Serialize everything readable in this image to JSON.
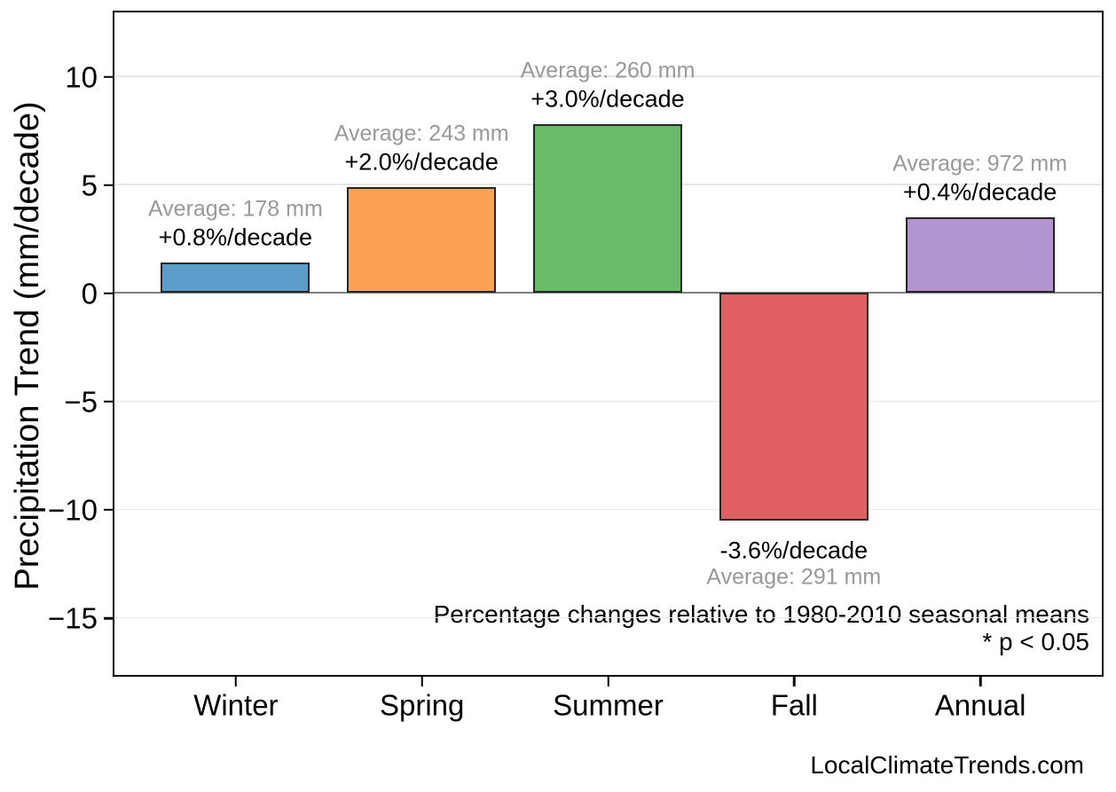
{
  "figure": {
    "footer": "LocalClimateTrends.com"
  },
  "chart_data": {
    "type": "bar",
    "title": "",
    "xlabel": "",
    "ylabel": "Precipitation Trend (mm/decade)",
    "categories": [
      "Winter",
      "Spring",
      "Summer",
      "Fall",
      "Annual"
    ],
    "series": [
      {
        "name": "Precipitation trend (mm/decade)",
        "values": [
          1.4,
          4.9,
          7.8,
          -10.5,
          3.5
        ]
      }
    ],
    "bar_labels": [
      {
        "percent": "+0.8%/decade",
        "average": "Average: 178 mm"
      },
      {
        "percent": "+2.0%/decade",
        "average": "Average: 243 mm"
      },
      {
        "percent": "+3.0%/decade",
        "average": "Average: 260 mm"
      },
      {
        "percent": "-3.6%/decade",
        "average": "Average: 291 mm"
      },
      {
        "percent": "+0.4%/decade",
        "average": "Average: 972 mm"
      }
    ],
    "bar_colors": [
      "#5C9CC9",
      "#FCA254",
      "#69BB69",
      "#E05F60",
      "#B194D0"
    ],
    "bar_edge_color": "#262626",
    "percent_label_color": "#000000",
    "average_label_color": "#999999",
    "yticks": [
      10,
      5,
      0,
      -5,
      -10,
      -15
    ],
    "ytick_labels": [
      "10",
      "5",
      "0",
      "−5",
      "−10",
      "−15"
    ],
    "ylim": [
      -17.6,
      12.95
    ],
    "xlim": [
      -0.65,
      4.65
    ],
    "bar_width": 0.8,
    "grid": "horizontal-only",
    "gridline_color": "#e7e7e7",
    "zero_line_color": "#7f7f7f",
    "legend": "none",
    "annotations": [
      "Percentage changes relative to 1980-2010 seasonal means",
      "* p < 0.05"
    ]
  }
}
